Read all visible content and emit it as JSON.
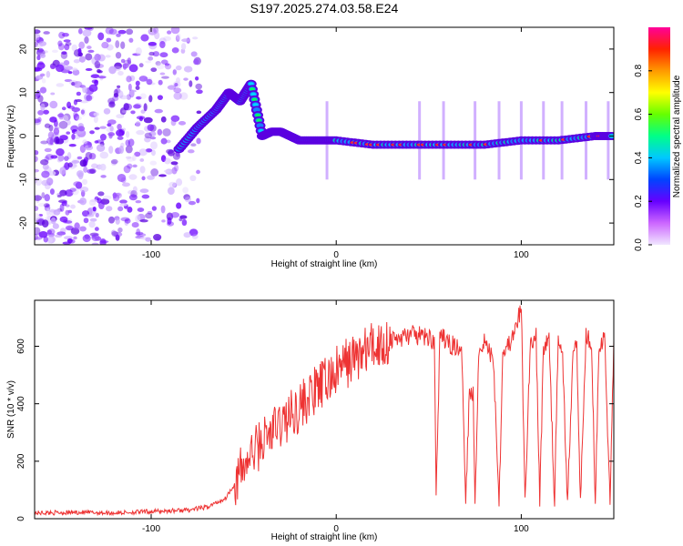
{
  "title": "S197.2025.274.03.58.E24",
  "chart_data": [
    {
      "type": "heatmap",
      "name": "spectrogram",
      "xlabel": "Height of straight line (km)",
      "ylabel": "Frequency (Hz)",
      "xlim": [
        -163,
        150
      ],
      "ylim": [
        -25,
        25
      ],
      "xticks": [
        -100,
        0,
        100
      ],
      "yticks": [
        -20,
        -10,
        0,
        10,
        20
      ],
      "colorbar": {
        "label": "Normalized spectral amplitude",
        "range": [
          0,
          1
        ],
        "ticks": [
          0.0,
          0.2,
          0.4,
          0.6,
          0.8
        ]
      },
      "trace": {
        "x": [
          -85,
          -75,
          -65,
          -58,
          -52,
          -46,
          -40,
          -35,
          -30,
          -25,
          -20,
          -10,
          0,
          20,
          40,
          60,
          80,
          100,
          120,
          140,
          150
        ],
        "y": [
          -3,
          2,
          6,
          10,
          8,
          12,
          0,
          1,
          1,
          0,
          -1,
          -1,
          -1,
          -2,
          -2,
          -2,
          -2,
          -1,
          -1,
          0,
          0
        ]
      }
    },
    {
      "type": "line",
      "name": "snr",
      "xlabel": "Height of straight line (km)",
      "ylabel": "SNR (10 * v/v)",
      "xlim": [
        -163,
        150
      ],
      "ylim": [
        0,
        760
      ],
      "xticks": [
        -100,
        0,
        100
      ],
      "yticks": [
        0,
        200,
        400,
        600
      ],
      "series": [
        {
          "name": "SNR",
          "color": "#ee3333",
          "x": [
            -163,
            -140,
            -120,
            -100,
            -80,
            -70,
            -60,
            -55,
            -50,
            -45,
            -40,
            -35,
            -30,
            -25,
            -20,
            -15,
            -10,
            -5,
            0,
            5,
            10,
            15,
            20,
            25,
            30,
            35,
            40,
            45,
            50,
            53,
            54,
            56,
            58,
            60,
            65,
            68,
            70,
            72,
            74,
            75,
            77,
            80,
            85,
            88,
            90,
            92,
            95,
            98,
            100,
            102,
            105,
            108,
            110,
            112,
            115,
            118,
            120,
            122,
            125,
            128,
            130,
            132,
            135,
            138,
            140,
            142,
            145,
            148,
            150
          ],
          "y": [
            20,
            22,
            20,
            25,
            30,
            40,
            70,
            120,
            180,
            230,
            270,
            300,
            330,
            360,
            390,
            420,
            450,
            480,
            510,
            540,
            560,
            580,
            600,
            610,
            620,
            630,
            640,
            635,
            630,
            620,
            80,
            620,
            630,
            610,
            600,
            560,
            70,
            450,
            430,
            60,
            580,
            620,
            550,
            60,
            580,
            600,
            620,
            680,
            740,
            60,
            620,
            630,
            60,
            600,
            620,
            60,
            630,
            610,
            60,
            600,
            620,
            60,
            640,
            620,
            60,
            610,
            630,
            60,
            620
          ]
        }
      ]
    }
  ]
}
